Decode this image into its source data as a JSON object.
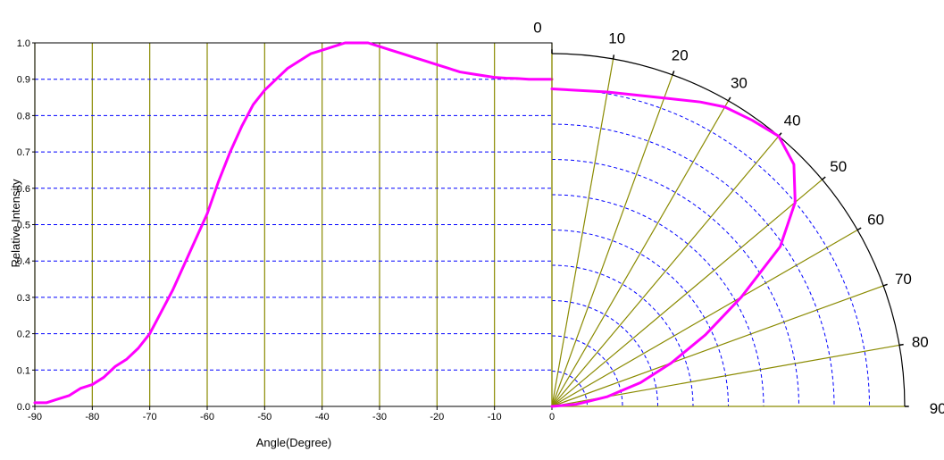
{
  "chart_data": [
    {
      "type": "line",
      "xlabel": "Angle(Degree)",
      "ylabel": "Relative Intensity",
      "xlim": [
        -90,
        0
      ],
      "ylim": [
        0,
        1.0
      ],
      "x_ticks": [
        "-90",
        "-80",
        "-70",
        "-60",
        "-50",
        "-40",
        "-30",
        "-20",
        "-10",
        "0"
      ],
      "y_ticks": [
        "0.0",
        "0.1",
        "0.2",
        "0.3",
        "0.4",
        "0.5",
        "0.6",
        "0.7",
        "0.8",
        "0.9",
        "1.0"
      ],
      "grid": true,
      "line_color": "#ff00ff",
      "vertical_grid_color": "#8a8a00",
      "horizontal_grid_color": "#0000ff",
      "series": [
        {
          "x": [
            -90,
            -88,
            -86,
            -84,
            -82,
            -80,
            -78,
            -76,
            -74,
            -72,
            -70,
            -68,
            -66,
            -64,
            -62,
            -60,
            -58,
            -56,
            -54,
            -52,
            -50,
            -48,
            -46,
            -44,
            -42,
            -40,
            -38,
            -36,
            -34,
            -32,
            -30,
            -28,
            -26,
            -24,
            -22,
            -20,
            -18,
            -16,
            -14,
            -12,
            -10,
            -8,
            -6,
            -4,
            -2,
            0
          ],
          "y": [
            0.01,
            0.01,
            0.02,
            0.03,
            0.05,
            0.06,
            0.08,
            0.11,
            0.13,
            0.16,
            0.2,
            0.26,
            0.32,
            0.39,
            0.46,
            0.53,
            0.62,
            0.7,
            0.77,
            0.83,
            0.87,
            0.9,
            0.93,
            0.95,
            0.97,
            0.98,
            0.99,
            1.0,
            1.0,
            1.0,
            0.99,
            0.98,
            0.97,
            0.96,
            0.95,
            0.94,
            0.93,
            0.92,
            0.915,
            0.91,
            0.905,
            0.903,
            0.902,
            0.9,
            0.9,
            0.9
          ]
        }
      ]
    },
    {
      "type": "polar",
      "theta_ticks": [
        "0",
        "10",
        "20",
        "30",
        "40",
        "50",
        "60",
        "70",
        "80",
        "90"
      ],
      "r_max": 1.0,
      "ring_levels": [
        0.1,
        0.2,
        0.3,
        0.4,
        0.5,
        0.6,
        0.7,
        0.8,
        0.9
      ],
      "spoke_angles": [
        0,
        10,
        20,
        30,
        40,
        50,
        60,
        70,
        80,
        90
      ],
      "line_color": "#ff00ff",
      "series": [
        {
          "theta": [
            0,
            10,
            20,
            26,
            30,
            35,
            40,
            45,
            50,
            55,
            60,
            65,
            70,
            75,
            80,
            85,
            90
          ],
          "r": [
            0.9,
            0.905,
            0.93,
            0.96,
            0.98,
            0.99,
            1.0,
            0.97,
            0.9,
            0.79,
            0.62,
            0.48,
            0.36,
            0.26,
            0.16,
            0.07,
            0.0
          ]
        }
      ]
    }
  ]
}
